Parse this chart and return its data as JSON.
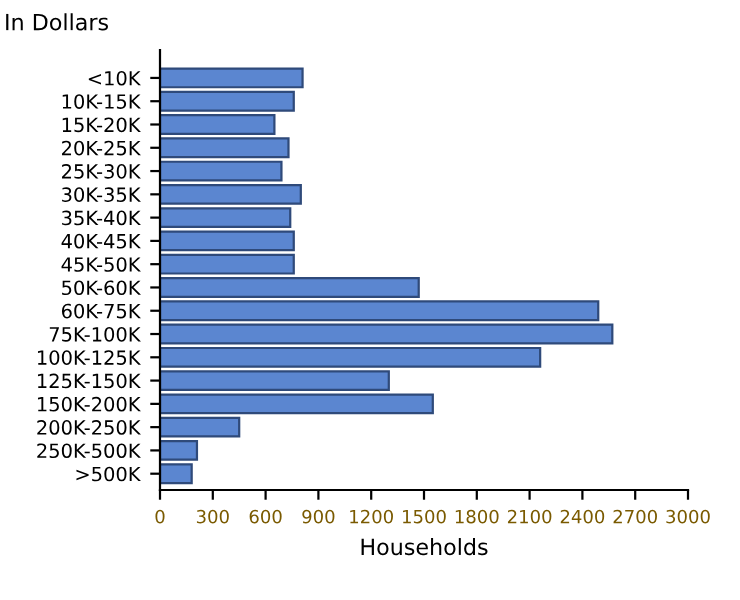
{
  "chart_data": {
    "type": "bar",
    "orientation": "horizontal",
    "ylabel": "In Dollars",
    "xlabel": "Households",
    "categories": [
      "<10K",
      "10K-15K",
      "15K-20K",
      "20K-25K",
      "25K-30K",
      "30K-35K",
      "35K-40K",
      "40K-45K",
      "45K-50K",
      "50K-60K",
      "60K-75K",
      "75K-100K",
      "100K-125K",
      "125K-150K",
      "150K-200K",
      "200K-250K",
      "250K-500K",
      ">500K"
    ],
    "values": [
      810,
      760,
      650,
      730,
      690,
      800,
      740,
      760,
      760,
      1470,
      2490,
      2570,
      2160,
      1300,
      1550,
      450,
      210,
      180
    ],
    "color": "#5b86d0",
    "xlim": [
      0,
      3000
    ],
    "xticks": [
      0,
      300,
      600,
      900,
      1200,
      1500,
      1800,
      2100,
      2400,
      2700,
      3000
    ],
    "grid": false,
    "legend": false
  }
}
